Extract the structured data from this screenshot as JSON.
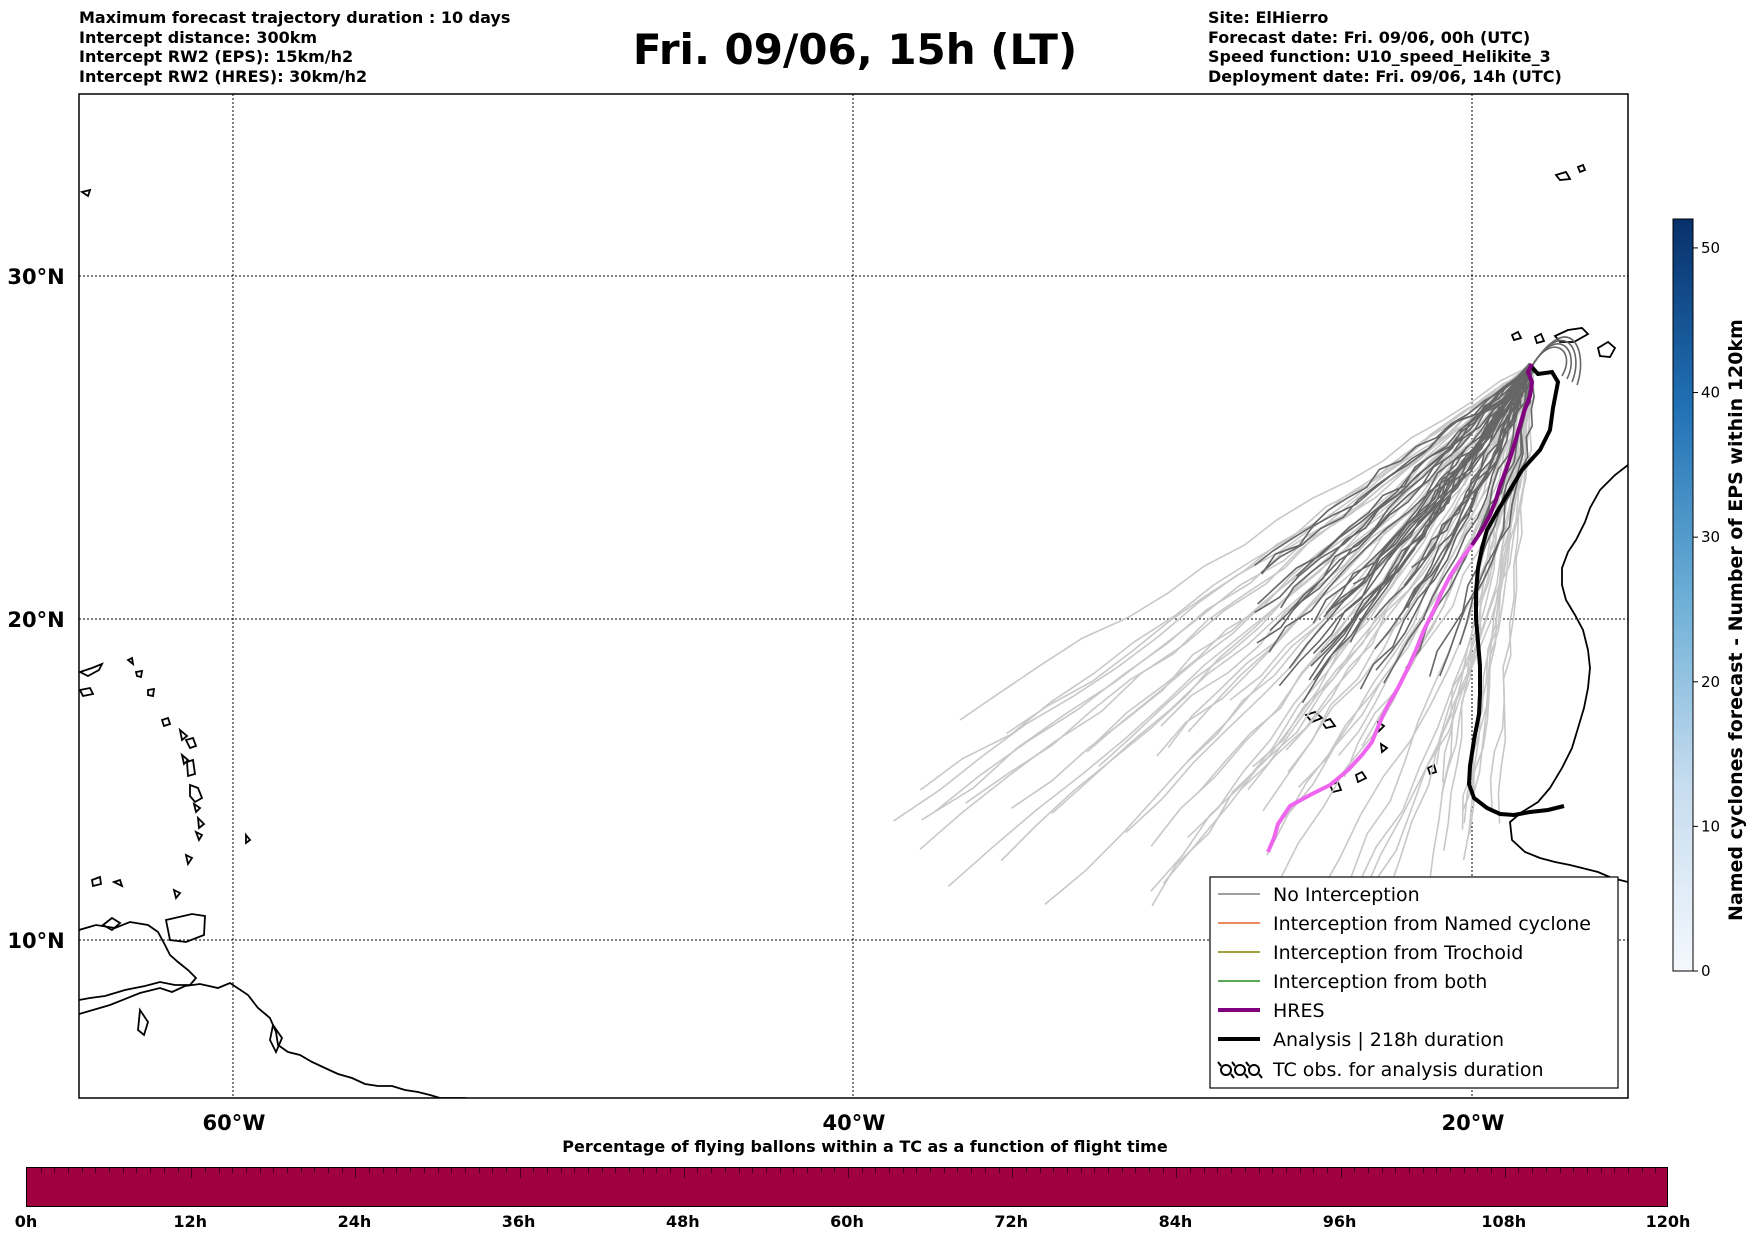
{
  "header": {
    "left_lines": [
      "Maximum forecast trajectory duration : 10 days",
      "Intercept distance: 300km",
      "Intercept RW2 (EPS):  15km/h2",
      "Intercept RW2 (HRES): 30km/h2"
    ],
    "title": "Fri. 09/06, 15h (LT)",
    "right_lines": [
      "Site: ElHierro",
      "Forecast date: Fri. 09/06, 00h (UTC)",
      "Speed function: U10_speed_Helikite_3",
      "Deployment date: Fri. 09/06, 14h (UTC)"
    ]
  },
  "map": {
    "lat_labels": [
      "30°N",
      "20°N",
      "10°N"
    ],
    "lon_labels": [
      "60°W",
      "40°W",
      "20°W"
    ],
    "colors": {
      "ensemble_dark": "#666666",
      "ensemble_light": "#c8c8c8",
      "hres_early": "#800080",
      "hres_late": "#ee66ee",
      "analysis": "#000000"
    }
  },
  "legend": {
    "items": [
      {
        "label": "No Interception",
        "color": "#808080"
      },
      {
        "label": "Interception from Named cyclone",
        "color": "#e8602c"
      },
      {
        "label": "Interception from Trochoid",
        "color": "#808000"
      },
      {
        "label": "Interception from both",
        "color": "#228b22"
      },
      {
        "label": "HRES",
        "color": "#800080"
      },
      {
        "label": "Analysis | 218h duration",
        "color": "#000000"
      },
      {
        "label": "TC obs. for analysis duration",
        "icon": "ooo"
      }
    ]
  },
  "colorbar": {
    "title": "Named cyclones forecast - Number of EPS within 120km",
    "ticks": [
      "0",
      "10",
      "20",
      "30",
      "40",
      "50"
    ],
    "range": [
      0,
      52
    ]
  },
  "flight_bar": {
    "title": "Percentage of flying ballons within a TC as a function of flight time",
    "ticks": [
      "0h",
      "12h",
      "24h",
      "36h",
      "48h",
      "60h",
      "72h",
      "84h",
      "96h",
      "108h",
      "120h"
    ],
    "bar_color": "#a00040"
  }
}
